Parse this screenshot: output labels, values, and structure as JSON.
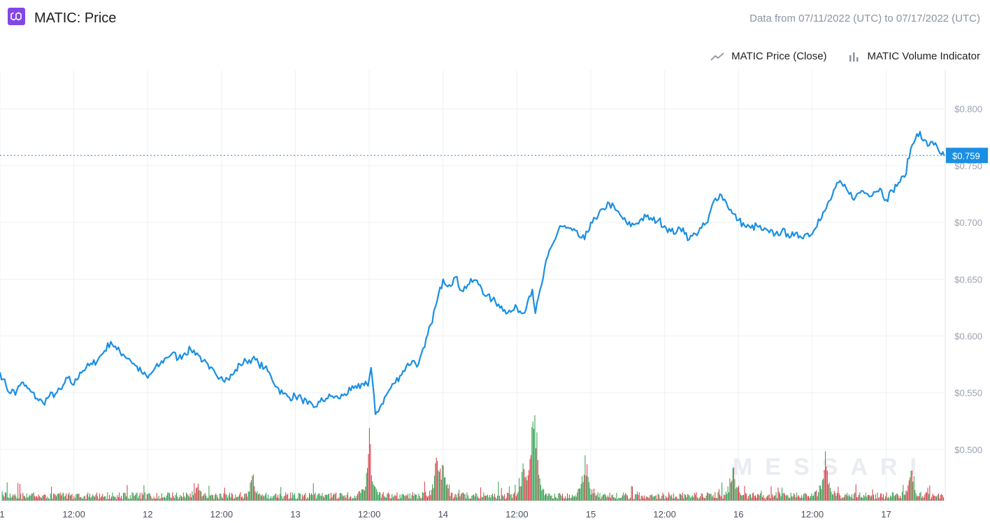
{
  "header": {
    "title": "MATIC: Price",
    "date_range": "Data from 07/11/2022 (UTC) to 07/17/2022 (UTC)"
  },
  "legend": {
    "price_label": "MATIC Price (Close)",
    "volume_label": "MATIC Volume Indicator"
  },
  "watermark": "MESSARI",
  "colors": {
    "line": "#1a8fe3",
    "volume_up": "#2a9d4a",
    "volume_down": "#d9333f",
    "logo_bg": "#8247e5",
    "grid": "#eef0f4"
  },
  "icons": {
    "logo": "polygon-logo-icon",
    "price_legend": "line-chart-icon",
    "volume_legend": "bar-chart-icon"
  },
  "chart_data": {
    "type": "line",
    "title": "MATIC: Price",
    "ylim": [
      0.455,
      0.822
    ],
    "y_ticks": [
      "$0.500",
      "$0.550",
      "$0.600",
      "$0.650",
      "$0.700",
      "$0.750",
      "$0.800"
    ],
    "y_tick_values": [
      0.5,
      0.55,
      0.6,
      0.65,
      0.7,
      0.75,
      0.8
    ],
    "x_ticks": [
      "1",
      "12:00",
      "12",
      "12:00",
      "13",
      "12:00",
      "14",
      "12:00",
      "15",
      "12:00",
      "16",
      "12:00",
      "17"
    ],
    "x_tick_values": [
      0,
      12,
      24,
      36,
      48,
      60,
      72,
      84,
      96,
      108,
      120,
      132,
      144
    ],
    "xlim": [
      0,
      153.6
    ],
    "current_price_label": "$0.759",
    "current_price": 0.759,
    "x_unit": "hours since 07/11/2022 00:00 UTC",
    "series": [
      {
        "name": "MATIC Price (Close)",
        "x": [
          0,
          0.5,
          1,
          1.5,
          2,
          2.5,
          3,
          3.5,
          4,
          5,
          6,
          7,
          8,
          9,
          10,
          11,
          12,
          13,
          14,
          15,
          16,
          17,
          18,
          19,
          20,
          21,
          22,
          23,
          24,
          25,
          26,
          27,
          28,
          29,
          30,
          31,
          32,
          33,
          34,
          35,
          36,
          37,
          38,
          39,
          40,
          41,
          42,
          43,
          44,
          45,
          46,
          47,
          48,
          49,
          50,
          51,
          52,
          53,
          54,
          55,
          56,
          57,
          58,
          59,
          59.4,
          59.8,
          60.3,
          61,
          62,
          63,
          64,
          65,
          66,
          67,
          68,
          69,
          70,
          71,
          72,
          73,
          74,
          75,
          76,
          77,
          78,
          79,
          80,
          81,
          82,
          83,
          84,
          85,
          86,
          86.5,
          87,
          88,
          89,
          90,
          91,
          92,
          93,
          94,
          95,
          96,
          97,
          98,
          99,
          100,
          101,
          102,
          103,
          104,
          105,
          106,
          107,
          108,
          109,
          110,
          111,
          112,
          113,
          114,
          115,
          116,
          117,
          118,
          119,
          120,
          121,
          122,
          123,
          124,
          125,
          126,
          127,
          128,
          129,
          130,
          131,
          132,
          133,
          134,
          135,
          136,
          137,
          138,
          139,
          140,
          141,
          142,
          143,
          144,
          145,
          146,
          147,
          148,
          148.5,
          149,
          149.5,
          150,
          151,
          152,
          153,
          153.4
        ],
        "values": [
          0.568,
          0.562,
          0.556,
          0.55,
          0.553,
          0.548,
          0.556,
          0.559,
          0.556,
          0.551,
          0.545,
          0.541,
          0.547,
          0.549,
          0.553,
          0.563,
          0.557,
          0.568,
          0.572,
          0.575,
          0.58,
          0.587,
          0.595,
          0.588,
          0.584,
          0.58,
          0.574,
          0.568,
          0.563,
          0.57,
          0.575,
          0.581,
          0.585,
          0.58,
          0.585,
          0.588,
          0.585,
          0.578,
          0.571,
          0.567,
          0.564,
          0.562,
          0.567,
          0.575,
          0.578,
          0.58,
          0.576,
          0.572,
          0.565,
          0.555,
          0.549,
          0.546,
          0.547,
          0.545,
          0.54,
          0.537,
          0.542,
          0.545,
          0.547,
          0.545,
          0.549,
          0.552,
          0.554,
          0.558,
          0.56,
          0.556,
          0.572,
          0.531,
          0.54,
          0.55,
          0.558,
          0.565,
          0.573,
          0.578,
          0.575,
          0.59,
          0.61,
          0.63,
          0.65,
          0.645,
          0.652,
          0.64,
          0.645,
          0.649,
          0.645,
          0.635,
          0.632,
          0.628,
          0.623,
          0.621,
          0.625,
          0.62,
          0.635,
          0.641,
          0.62,
          0.645,
          0.67,
          0.683,
          0.697,
          0.695,
          0.693,
          0.688,
          0.685,
          0.7,
          0.703,
          0.712,
          0.717,
          0.711,
          0.705,
          0.698,
          0.698,
          0.702,
          0.705,
          0.702,
          0.702,
          0.697,
          0.692,
          0.692,
          0.695,
          0.685,
          0.69,
          0.695,
          0.7,
          0.719,
          0.725,
          0.718,
          0.708,
          0.702,
          0.697,
          0.695,
          0.697,
          0.693,
          0.691,
          0.69,
          0.692,
          0.69,
          0.688,
          0.688,
          0.69,
          0.69,
          0.703,
          0.71,
          0.72,
          0.735,
          0.732,
          0.725,
          0.722,
          0.728,
          0.725,
          0.727,
          0.73,
          0.72,
          0.728,
          0.735,
          0.74,
          0.765,
          0.77,
          0.778,
          0.78,
          0.772,
          0.768,
          0.77,
          0.76,
          0.759
        ]
      },
      {
        "name": "MATIC Volume Indicator",
        "values_normalized_note": "relative bar heights; volume spikes near hours 60, 71, 85, 87, 95, 119, 134, 148"
      }
    ]
  }
}
